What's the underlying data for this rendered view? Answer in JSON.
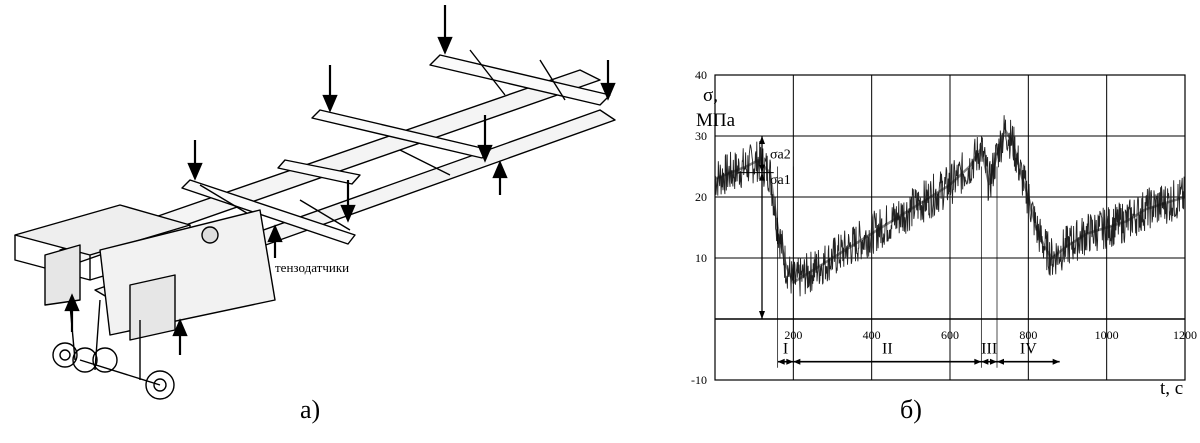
{
  "header_text": "...",
  "panel_a": {
    "label": "а)",
    "callout": "тензодатчики"
  },
  "panel_b": {
    "label": "б)",
    "ylabel_line1": "σ,",
    "ylabel_line2": "МПа",
    "xlabel": "t, с",
    "sigma_a1": "σa1",
    "sigma_a2": "σa2",
    "segments": [
      "I",
      "II",
      "III",
      "IV"
    ]
  },
  "chart_data": {
    "type": "line",
    "title": "",
    "xlabel": "t, с",
    "ylabel": "σ, МПа",
    "xlim": [
      0,
      1200
    ],
    "ylim": [
      -10,
      40
    ],
    "x_ticks": [
      200,
      400,
      600,
      800,
      1000,
      1200
    ],
    "y_ticks": [
      -10,
      10,
      20,
      30,
      40
    ],
    "grid": true,
    "series": [
      {
        "x": [
          0,
          40,
          80,
          110,
          140,
          160,
          180,
          200,
          250,
          300,
          350,
          400,
          450,
          500,
          550,
          600,
          650,
          680,
          700,
          720,
          740,
          760,
          780,
          800,
          820,
          840,
          860,
          880,
          900,
          950,
          1000,
          1050,
          1100,
          1150,
          1200
        ],
        "y": [
          23,
          24,
          25,
          26,
          24,
          15,
          9,
          6,
          8,
          10,
          12,
          14,
          16,
          18,
          20,
          22,
          25,
          28,
          22,
          27,
          31,
          29,
          24,
          20,
          15,
          12,
          10,
          11,
          12,
          14,
          15,
          16,
          18,
          19,
          20
        ]
      }
    ],
    "annotations": [
      {
        "text": "σa2",
        "from": 24,
        "to": 30
      },
      {
        "text": "σa1",
        "from": 0,
        "to": 24
      }
    ],
    "segments": [
      {
        "label": "I",
        "x_start": 160,
        "x_end": 200
      },
      {
        "label": "II",
        "x_start": 200,
        "x_end": 680
      },
      {
        "label": "III",
        "x_start": 680,
        "x_end": 720
      },
      {
        "label": "IV",
        "x_start": 720,
        "x_end": 880
      }
    ]
  }
}
